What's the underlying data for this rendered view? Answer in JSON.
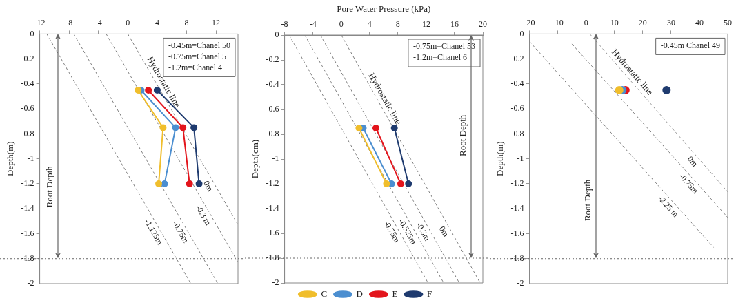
{
  "chart_data": [
    {
      "type": "line",
      "ylabel": "Depth(m)",
      "xlim": [
        -12,
        15
      ],
      "xticks": [
        -12,
        -8,
        -4,
        0,
        4,
        8,
        12
      ],
      "ylim": [
        -2,
        0
      ],
      "yticks": [
        -2,
        -1.8,
        -1.6,
        -1.4,
        -1.2,
        -1,
        -0.8,
        -0.6,
        -0.4,
        -0.2,
        0
      ],
      "marker": "circle",
      "series": [
        {
          "color": "#f0be2c",
          "x": [
            1.4,
            4.8,
            4.2
          ],
          "values": [
            -0.45,
            -0.75,
            -1.2
          ]
        },
        {
          "color": "#4b8ed0",
          "x": [
            1.8,
            6.5,
            5.0
          ],
          "values": [
            -0.45,
            -0.75,
            -1.2
          ]
        },
        {
          "color": "#e3151c",
          "x": [
            2.8,
            7.5,
            8.4
          ],
          "values": [
            -0.45,
            -0.75,
            -1.2
          ]
        },
        {
          "color": "#1f3b6f",
          "x": [
            4.0,
            9.0,
            9.7
          ],
          "values": [
            -0.45,
            -0.75,
            -1.2
          ]
        },
        {
          "name": "0m",
          "color": "#7f7f7f",
          "line_style": "dashed",
          "marker": "none",
          "x": [
            0,
            15
          ],
          "values": [
            0,
            -1.529
          ]
        },
        {
          "name": "-0.3 m",
          "color": "#7f7f7f",
          "line_style": "dashed",
          "marker": "none",
          "x": [
            -2.943,
            15
          ],
          "values": [
            0,
            -1.829
          ]
        },
        {
          "name": "-0.75m",
          "color": "#7f7f7f",
          "line_style": "dashed",
          "marker": "none",
          "x": [
            -7.358,
            12.263
          ],
          "values": [
            0,
            -2
          ]
        },
        {
          "name": "-1.125m",
          "color": "#7f7f7f",
          "line_style": "dashed",
          "marker": "none",
          "x": [
            -11.036,
            8.584
          ],
          "values": [
            0,
            -2
          ]
        }
      ],
      "ref_lines": [
        {
          "axis": "y",
          "value": -1.8,
          "line_style": "dotted",
          "color": "#666666"
        }
      ],
      "annotations": [
        "Hydrostatic line",
        "Root Depth",
        "-0.45m=Chanel 50",
        "-0.75m=Chanel 5",
        "-1.2m=Chanel 4"
      ]
    },
    {
      "type": "line",
      "xlabel": "Pore Water Pressure (kPa)",
      "ylabel": "Depth(cm)",
      "xlim": [
        -8,
        20
      ],
      "xticks": [
        -8,
        -4,
        0,
        4,
        8,
        12,
        16,
        20
      ],
      "ylim": [
        -2,
        0
      ],
      "yticks": [
        -2,
        -1.8,
        -1.6,
        -1.4,
        -1.2,
        -1,
        -0.8,
        -0.6,
        -0.4,
        -0.2,
        0
      ],
      "marker": "circle",
      "legend": "bottom",
      "series": [
        {
          "name": "C",
          "color": "#f0be2c",
          "x": [
            2.5,
            6.4
          ],
          "values": [
            -0.75,
            -1.2
          ]
        },
        {
          "name": "D",
          "color": "#4b8ed0",
          "x": [
            3.1,
            7.1
          ],
          "values": [
            -0.75,
            -1.2
          ]
        },
        {
          "name": "E",
          "color": "#e3151c",
          "x": [
            4.9,
            8.4
          ],
          "values": [
            -0.75,
            -1.2
          ]
        },
        {
          "name": "F",
          "color": "#1f3b6f",
          "x": [
            7.5,
            9.5
          ],
          "values": [
            -0.75,
            -1.2
          ]
        },
        {
          "name": "0m",
          "color": "#7f7f7f",
          "line_style": "dashed",
          "marker": "none",
          "x": [
            0,
            19.62
          ],
          "values": [
            0,
            -2
          ]
        },
        {
          "name": "-0.3m",
          "color": "#7f7f7f",
          "line_style": "dashed",
          "marker": "none",
          "x": [
            -2.943,
            16.677
          ],
          "values": [
            0,
            -2
          ]
        },
        {
          "name": "-0.525m",
          "color": "#7f7f7f",
          "line_style": "dashed",
          "marker": "none",
          "x": [
            -5.15,
            14.47
          ],
          "values": [
            0,
            -2
          ]
        },
        {
          "name": "-0.75m",
          "color": "#7f7f7f",
          "line_style": "dashed",
          "marker": "none",
          "x": [
            -7.358,
            12.263
          ],
          "values": [
            0,
            -2
          ]
        }
      ],
      "ref_lines": [
        {
          "axis": "y",
          "value": -1.8,
          "line_style": "dotted",
          "color": "#666666"
        }
      ],
      "annotations": [
        "Hydrostatic line",
        "Root Depth",
        "-0.75m=Chanel 53",
        "-1.2m=Chanel 6"
      ]
    },
    {
      "type": "line",
      "ylabel": "Depth(m)",
      "xlim": [
        -20,
        50
      ],
      "xticks": [
        -20,
        -10,
        0,
        10,
        20,
        30,
        40,
        50
      ],
      "ylim": [
        -2,
        0
      ],
      "yticks": [
        -2,
        -1.8,
        -1.6,
        -1.4,
        -1.2,
        -1,
        -0.8,
        -0.6,
        -0.4,
        -0.2,
        0
      ],
      "marker": "circle",
      "series": [
        {
          "type": "scatter",
          "color": "#f0be2c",
          "x": [
            11.7
          ],
          "values": [
            -0.45
          ]
        },
        {
          "type": "scatter",
          "color": "#4b8ed0",
          "x": [
            12.8
          ],
          "values": [
            -0.45
          ]
        },
        {
          "type": "scatter",
          "color": "#e3151c",
          "x": [
            13.9
          ],
          "values": [
            -0.45
          ]
        },
        {
          "type": "scatter",
          "color": "#1f3b6f",
          "x": [
            28.4
          ],
          "values": [
            -0.45
          ]
        },
        {
          "name": "0m",
          "color": "#9a9a9a",
          "line_style": "dashed",
          "marker": "none",
          "x": [
            1.3,
            50
          ],
          "values": [
            0,
            -1.265
          ]
        },
        {
          "name": "-0.75m",
          "color": "#7f7f7f",
          "line_style": "dashed",
          "marker": "none",
          "x": [
            -5,
            50
          ],
          "values": [
            -0.08,
            -1.47
          ]
        },
        {
          "name": "-2.25 m",
          "color": "#7f7f7f",
          "line_style": "dashed",
          "marker": "none",
          "x": [
            -20,
            45
          ],
          "values": [
            -0.06,
            -1.71
          ]
        }
      ],
      "ref_lines": [
        {
          "axis": "y",
          "value": -1.8,
          "line_style": "dotted",
          "color": "#666666"
        }
      ],
      "annotations": [
        "Hydrostatic line",
        "Root Depth",
        "-0.45m Chanel 49"
      ]
    }
  ]
}
